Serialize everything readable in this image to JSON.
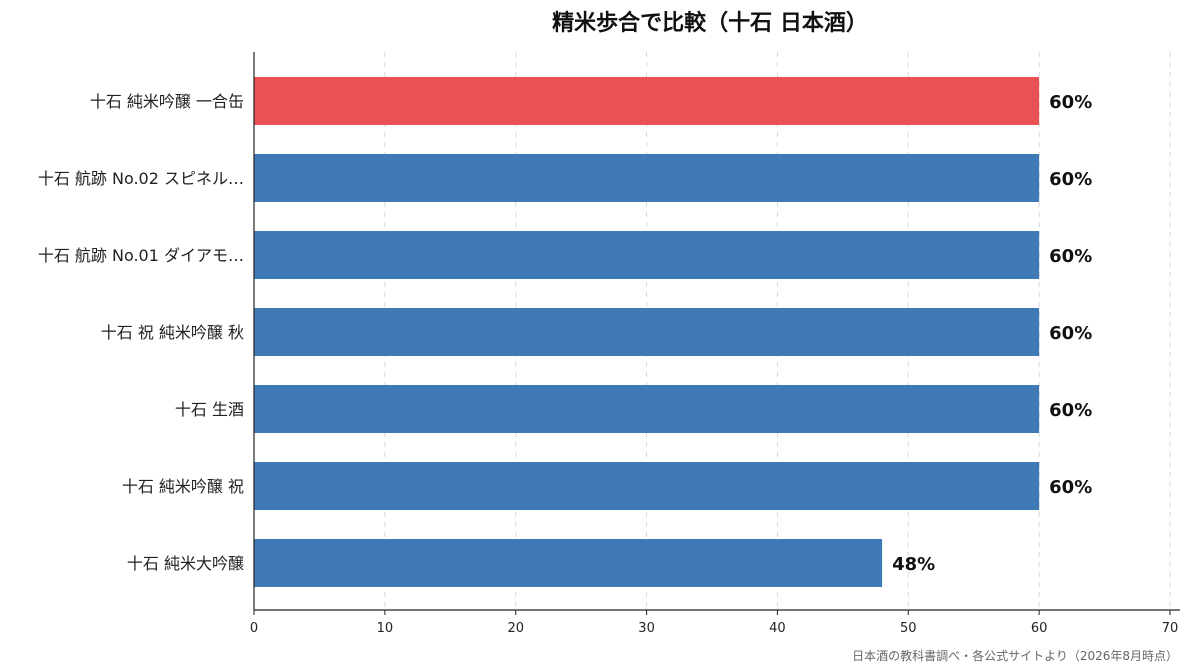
{
  "chart_data": {
    "type": "bar",
    "orientation": "horizontal",
    "title": "精米歩合で比較（十石 日本酒）",
    "categories": [
      "十石 純米吟醸 一合缶",
      "十石 航跡 No.02 スピネル…",
      "十石 航跡 No.01 ダイアモ…",
      "十石 祝 純米吟醸 秋",
      "十石 生酒",
      "十石 純米吟醸 祝",
      "十石 純米大吟醸"
    ],
    "values": [
      60,
      60,
      60,
      60,
      60,
      60,
      48
    ],
    "value_labels": [
      "60%",
      "60%",
      "60%",
      "60%",
      "60%",
      "60%",
      "48%"
    ],
    "highlight_index": 0,
    "xlim": [
      0,
      70
    ],
    "xticks": [
      0,
      10,
      20,
      30,
      40,
      50,
      60,
      70
    ],
    "grid": "vertical dashed",
    "colors": {
      "highlight": "#e85254",
      "default": "#3f7ab6"
    },
    "footnote": "日本酒の教科書調べ・各公式サイトより（2026年8月時点）"
  }
}
